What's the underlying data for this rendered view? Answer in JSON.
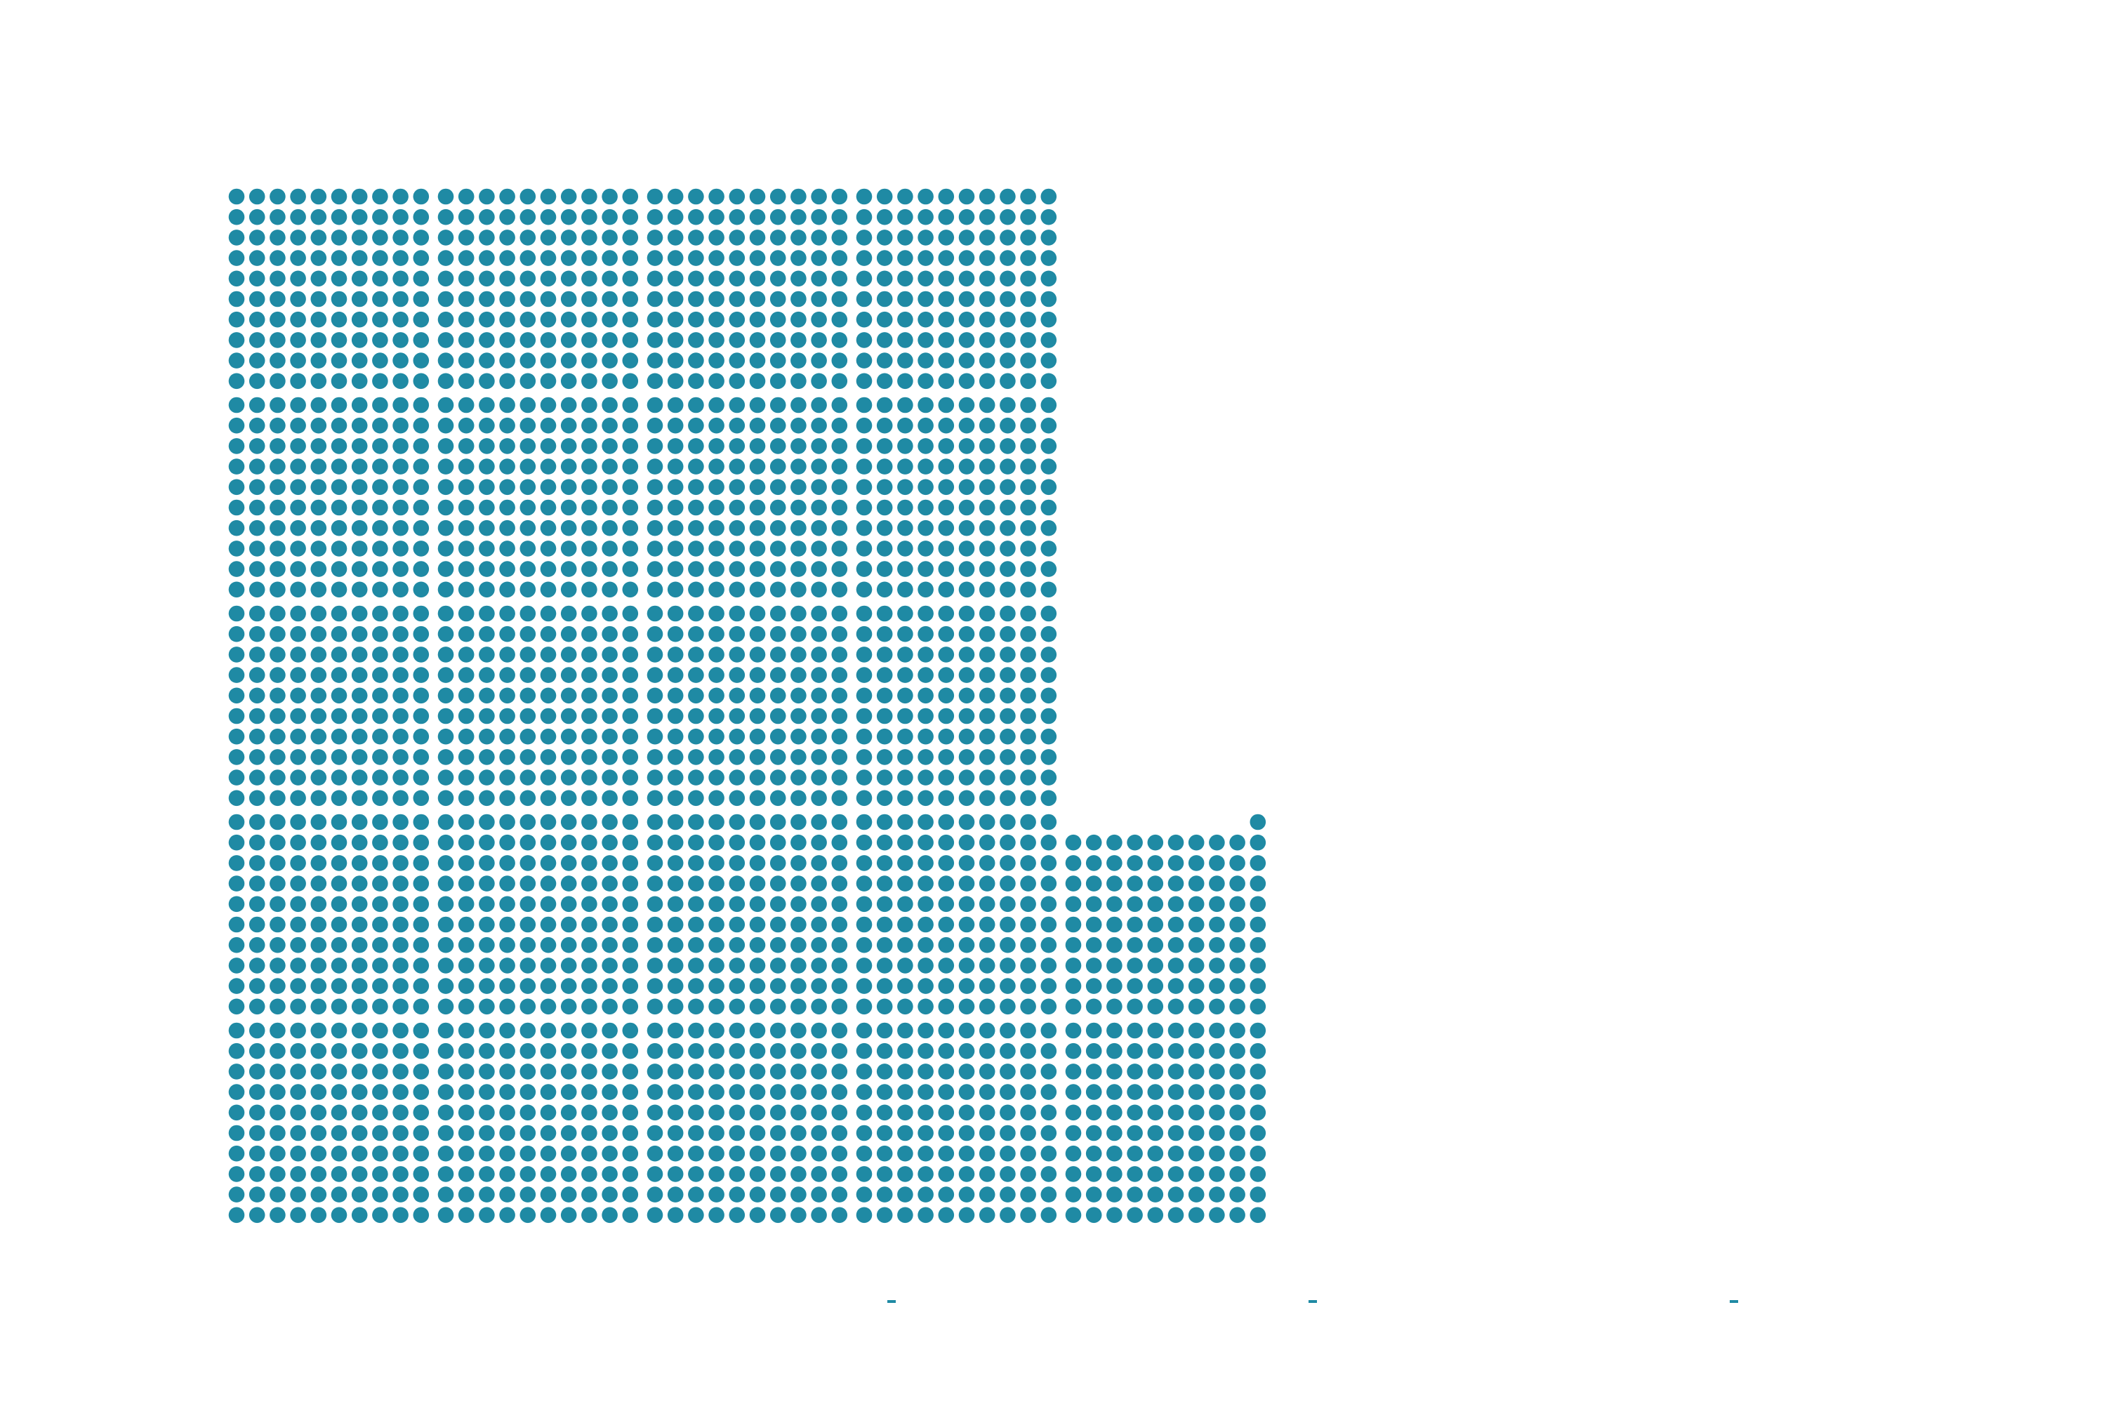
{
  "chart_data": {
    "type": "waffle",
    "title": "",
    "xlabel": "",
    "ylabel": "",
    "unit_block_size": 100,
    "block_grid": "10x10",
    "blocks_per_column": 5,
    "full_columns": 4,
    "partial_column_blocks": 2,
    "dots_in_partial_top_block": 91,
    "total_dots": 2191,
    "x_ticks": [
      "",
      "",
      ""
    ],
    "legend": "none",
    "grid": false,
    "colors": {
      "dot": "#1f8aa4",
      "background": "#ffffff"
    }
  }
}
